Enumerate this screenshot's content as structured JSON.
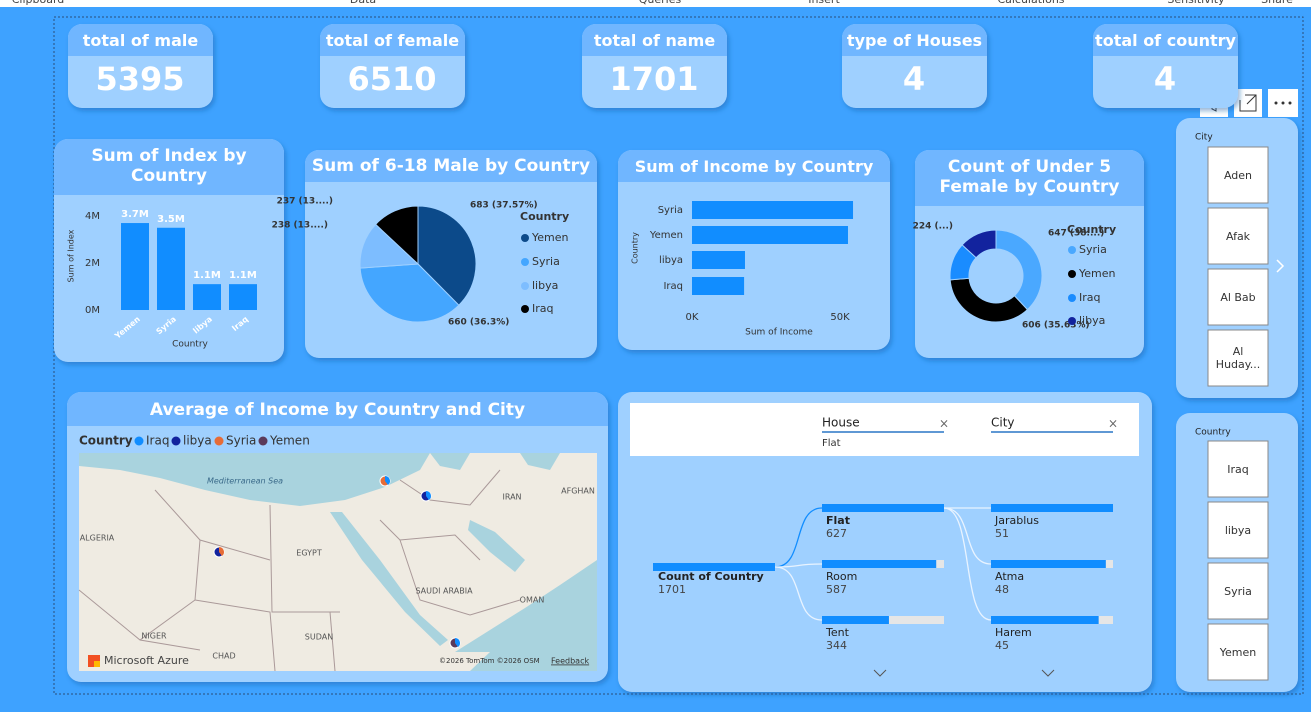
{
  "ribbon": {
    "tabs": [
      "Clipboard",
      "Data",
      "Queries",
      "Insert",
      "Calculations",
      "Sensitivity",
      "Share"
    ]
  },
  "cards": [
    {
      "label": "total of male",
      "value": 5395
    },
    {
      "label": "total of female",
      "value": 6510
    },
    {
      "label": "total of name",
      "value": 1701
    },
    {
      "label": "type of Houses",
      "value": 4
    },
    {
      "label": "total of country",
      "value": 4
    }
  ],
  "chart_data": [
    {
      "type": "bar",
      "title": "Sum of Index by Country",
      "categories": [
        "Yemen",
        "Syria",
        "libya",
        "Iraq"
      ],
      "values": [
        3700000,
        3500000,
        1100000,
        1100000
      ],
      "value_labels": [
        "3.7M",
        "3.5M",
        "1.1M",
        "1.1M"
      ],
      "color": "#118dff",
      "ylim": [
        0,
        4000000
      ],
      "yticks": [
        {
          "value": 0,
          "label": "0M"
        },
        {
          "value": 2000000,
          "label": "2M"
        },
        {
          "value": 4000000,
          "label": "4M"
        }
      ],
      "x_label": "Country",
      "y_label": "Sum of Index",
      "grid": false
    },
    {
      "type": "pie",
      "title": "Sum of 6-18 Male by Country",
      "legend_title": "Country",
      "categories": [
        "Yemen",
        "Syria",
        "libya",
        "Iraq"
      ],
      "values": [
        683,
        660,
        238,
        237
      ],
      "value_labels": [
        "683 (37.57%)",
        "660 (36.3%)",
        "238 (13....)",
        "237 (13....)"
      ],
      "colors": [
        "#0c4a8a",
        "#44a6ff",
        "#7dbdff",
        "#000000"
      ]
    },
    {
      "type": "hbar",
      "title": "Sum of Income by Country",
      "categories": [
        "Syria",
        "Yemen",
        "libya",
        "Iraq"
      ],
      "values": [
        54400,
        52700,
        17900,
        17600
      ],
      "color": "#118dff",
      "xlim": [
        0,
        60000
      ],
      "xticks": [
        {
          "value": 0,
          "label": "0K"
        },
        {
          "value": 50000,
          "label": "50K"
        }
      ],
      "x_label": "Sum of Income",
      "y_label": "Country",
      "grid": false
    },
    {
      "type": "donut",
      "title": "Count of Under 5 Female by Country",
      "legend_title": "Country",
      "categories": [
        "Syria",
        "Yemen",
        "Iraq",
        "libya"
      ],
      "values": [
        647,
        606,
        224,
        224
      ],
      "value_labels": [
        "647 (38....)",
        "606 (35.63%)",
        null,
        "224 (...)"
      ],
      "colors": [
        "#4aa8ff",
        "#000000",
        "#1a8cff",
        "#12239e"
      ]
    }
  ],
  "map": {
    "title": "Average of Income by Country and City",
    "legend_title": "Country",
    "legend": [
      {
        "name": "Iraq",
        "color": "#118dff"
      },
      {
        "name": "libya",
        "color": "#12239e"
      },
      {
        "name": "Syria",
        "color": "#e66c37"
      },
      {
        "name": "Yemen",
        "color": "#5b3a5a"
      }
    ],
    "place_labels": [
      "Mediterranean Sea",
      "IRAN",
      "AFGHAN",
      "ALGERIA",
      "EGYPT",
      "SAUDI ARABIA",
      "OMAN",
      "NIGER",
      "SUDAN",
      "CHAD"
    ],
    "attribution": "Microsoft Azure",
    "copyright": "©2026 TomTom ©2026 OSM",
    "feedback": "Feedback"
  },
  "decomposition_tree": {
    "filters": [
      {
        "field": "House",
        "value": "Flat"
      },
      {
        "field": "City"
      }
    ],
    "root": {
      "label": "Count of Country",
      "value": 1701
    },
    "levels": [
      [
        {
          "label": "Flat",
          "value": 627
        },
        {
          "label": "Room",
          "value": 587
        },
        {
          "label": "Tent",
          "value": 344
        }
      ],
      [
        {
          "label": "Jarablus",
          "value": 51
        },
        {
          "label": "Atma",
          "value": 48
        },
        {
          "label": "Harem",
          "value": 45
        }
      ]
    ]
  },
  "slicers": [
    {
      "title": "City",
      "items": [
        "Aden",
        "Afak",
        "Al Bab",
        "Al Huday..."
      ]
    },
    {
      "title": "Country",
      "items": [
        "Iraq",
        "libya",
        "Syria",
        "Yemen"
      ]
    }
  ]
}
